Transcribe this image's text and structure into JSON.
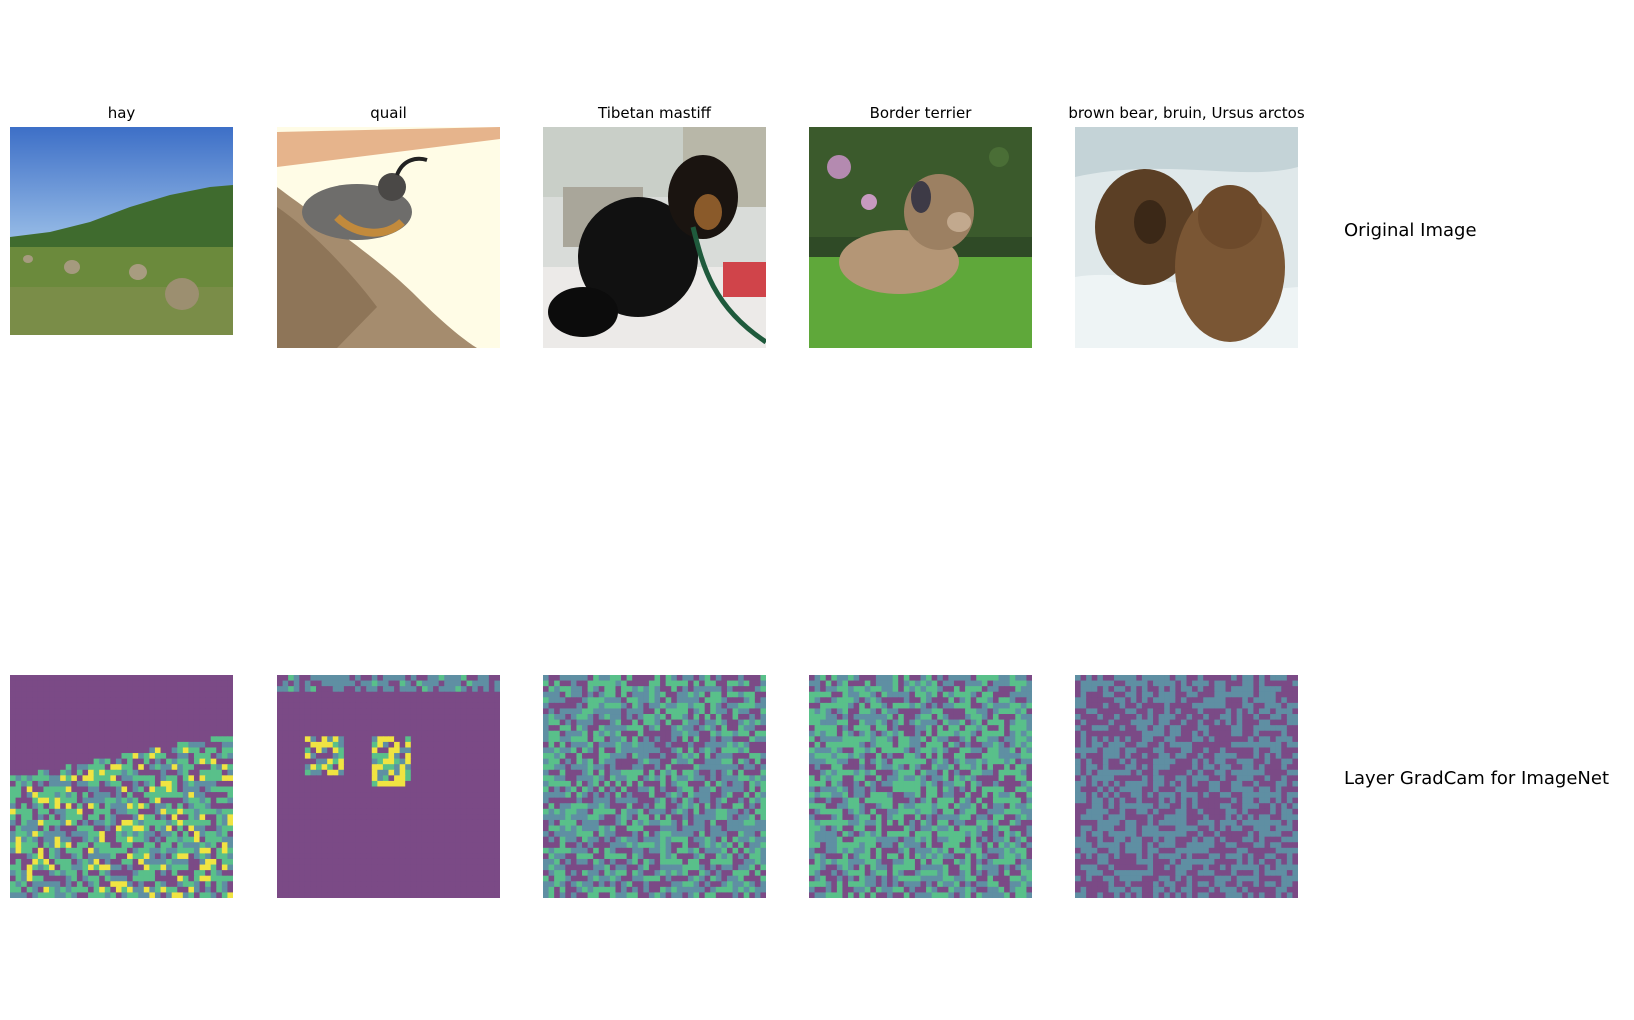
{
  "row_labels": {
    "original": "Original Image",
    "gradcam": "Layer GradCam for ImageNet"
  },
  "panels": [
    {
      "title": "hay",
      "image": "field with round hay bales and row of poplar trees under blue sky"
    },
    {
      "title": "quail",
      "image": "quail with head plume perched on rock against pale background"
    },
    {
      "title": "Tibetan mastiff",
      "image": "black and tan Tibetan mastiff sitting on leash on tiled floor"
    },
    {
      "title": "Border terrier",
      "image": "tan terrier lying on green grass in garden"
    },
    {
      "title": "brown bear, bruin, Ursus arctos",
      "image": "two brown bears in white rushing water"
    }
  ],
  "heatmap_colors": {
    "low": "#7b4a86",
    "mid": "#5f8fa3",
    "high_mid": "#59c08a",
    "high": "#f0e442"
  }
}
